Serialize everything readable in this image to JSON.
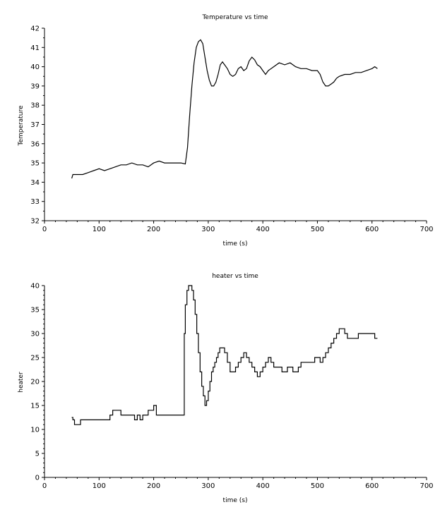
{
  "chart_data": [
    {
      "type": "line",
      "title": "Temperature vs time",
      "xlabel": "time (s)",
      "ylabel": "Temperature",
      "xlim": [
        0,
        700
      ],
      "ylim": [
        32,
        42
      ],
      "xticks": [
        "0",
        "100",
        "200",
        "300",
        "400",
        "500",
        "600",
        "700"
      ],
      "yticks": [
        "32",
        "33",
        "34",
        "35",
        "36",
        "37",
        "38",
        "39",
        "40",
        "41",
        "42"
      ],
      "grid": false,
      "series": [
        {
          "color": "#000000",
          "x": [
            50,
            52,
            60,
            70,
            80,
            90,
            100,
            110,
            120,
            130,
            140,
            150,
            160,
            170,
            180,
            190,
            200,
            210,
            220,
            230,
            240,
            250,
            258,
            262,
            266,
            270,
            274,
            278,
            282,
            286,
            290,
            294,
            298,
            302,
            306,
            310,
            314,
            318,
            322,
            326,
            330,
            335,
            340,
            345,
            350,
            355,
            360,
            365,
            370,
            375,
            380,
            385,
            390,
            395,
            400,
            405,
            410,
            420,
            430,
            440,
            450,
            460,
            470,
            480,
            490,
            500,
            505,
            510,
            515,
            520,
            525,
            530,
            535,
            540,
            550,
            560,
            570,
            580,
            590,
            600,
            605,
            610
          ],
          "y": [
            34.2,
            34.4,
            34.4,
            34.4,
            34.5,
            34.6,
            34.7,
            34.6,
            34.7,
            34.8,
            34.9,
            34.9,
            35.0,
            34.9,
            34.9,
            34.8,
            35.0,
            35.1,
            35.0,
            35.0,
            35.0,
            35.0,
            34.95,
            35.8,
            37.5,
            39.0,
            40.2,
            41.0,
            41.3,
            41.4,
            41.2,
            40.5,
            39.8,
            39.3,
            39.0,
            39.0,
            39.2,
            39.6,
            40.1,
            40.25,
            40.1,
            39.9,
            39.6,
            39.5,
            39.6,
            39.9,
            40.0,
            39.8,
            39.9,
            40.3,
            40.5,
            40.35,
            40.1,
            40.0,
            39.8,
            39.6,
            39.8,
            40.0,
            40.2,
            40.1,
            40.2,
            40.0,
            39.9,
            39.9,
            39.8,
            39.8,
            39.6,
            39.2,
            39.0,
            39.0,
            39.1,
            39.2,
            39.4,
            39.5,
            39.6,
            39.6,
            39.7,
            39.7,
            39.8,
            39.9,
            40.0,
            39.9
          ]
        }
      ]
    },
    {
      "type": "line",
      "title": "heater vs time",
      "xlabel": "time (s)",
      "ylabel": "heater",
      "xlim": [
        0,
        700
      ],
      "ylim": [
        0,
        40
      ],
      "xticks": [
        "0",
        "100",
        "200",
        "300",
        "400",
        "500",
        "600",
        "700"
      ],
      "yticks": [
        "0",
        "5",
        "10",
        "15",
        "20",
        "25",
        "30",
        "35",
        "40"
      ],
      "grid": false,
      "series": [
        {
          "color": "#000000",
          "x": [
            50,
            52,
            55,
            62,
            66,
            70,
            75,
            80,
            85,
            90,
            95,
            100,
            105,
            110,
            115,
            120,
            125,
            130,
            135,
            140,
            145,
            150,
            155,
            160,
            165,
            170,
            175,
            180,
            185,
            190,
            195,
            200,
            205,
            210,
            215,
            220,
            225,
            230,
            235,
            240,
            245,
            250,
            255,
            256,
            258,
            261,
            264,
            267,
            270,
            273,
            276,
            279,
            282,
            285,
            288,
            291,
            294,
            297,
            300,
            303,
            306,
            309,
            312,
            315,
            318,
            321,
            324,
            327,
            330,
            335,
            340,
            345,
            350,
            355,
            360,
            365,
            370,
            375,
            380,
            385,
            390,
            395,
            400,
            405,
            410,
            415,
            420,
            425,
            430,
            435,
            440,
            445,
            450,
            455,
            460,
            465,
            470,
            475,
            480,
            485,
            490,
            495,
            500,
            505,
            510,
            515,
            520,
            525,
            530,
            535,
            540,
            545,
            550,
            555,
            560,
            565,
            570,
            575,
            580,
            585,
            590,
            595,
            600,
            605,
            610
          ],
          "y": [
            12.5,
            12,
            11,
            11,
            12,
            12,
            12,
            12,
            12,
            12,
            12,
            12,
            12,
            12,
            12,
            13,
            14,
            14,
            14,
            13,
            13,
            13,
            13,
            13,
            12,
            13,
            12,
            13,
            13,
            14,
            14,
            15,
            13,
            13,
            13,
            13,
            13,
            13,
            13,
            13,
            13,
            13,
            13,
            30,
            36,
            39,
            40,
            40,
            39,
            37,
            34,
            30,
            26,
            22,
            19,
            17,
            15,
            16,
            18,
            20,
            22,
            23,
            24,
            25,
            26,
            27,
            27,
            27,
            26,
            24,
            22,
            22,
            23,
            24,
            25,
            26,
            25,
            24,
            23,
            22,
            21,
            22,
            23,
            24,
            25,
            24,
            23,
            23,
            23,
            22,
            22,
            23,
            23,
            22,
            22,
            23,
            24,
            24,
            24,
            24,
            24,
            25,
            25,
            24,
            25,
            26,
            27,
            28,
            29,
            30,
            31,
            31,
            30,
            29,
            29,
            29,
            29,
            30,
            30,
            30,
            30,
            30,
            30,
            29,
            29
          ]
        }
      ]
    }
  ]
}
